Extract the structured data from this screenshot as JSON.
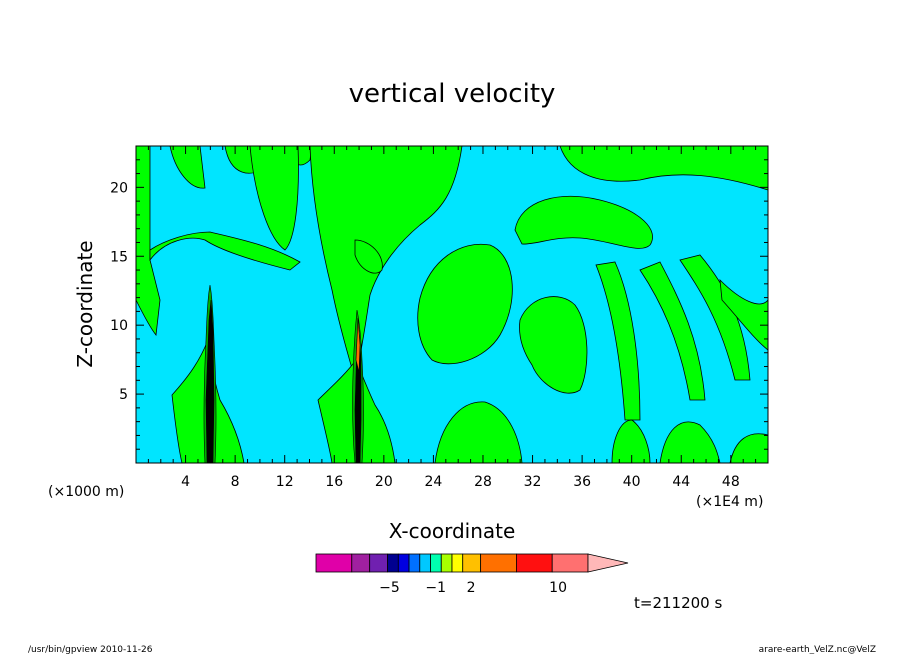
{
  "chart_data": {
    "type": "heatmap",
    "title": "vertical velocity",
    "xlabel": "X-coordinate",
    "ylabel": "Z-coordinate",
    "x_unit_label": "(×1E4 m)",
    "y_unit_label": "(×1000 m)",
    "xlim": [
      0,
      51
    ],
    "ylim": [
      0,
      23
    ],
    "x_ticks": [
      4,
      8,
      12,
      16,
      20,
      24,
      28,
      32,
      36,
      40,
      44,
      48
    ],
    "y_ticks": [
      5,
      10,
      15,
      20
    ],
    "time_label": "t=211200 s",
    "colorbar": {
      "colors": [
        "#e000a8",
        "#a020a0",
        "#7020b0",
        "#000090",
        "#0000e0",
        "#0070ff",
        "#00c8ff",
        "#00ffb0",
        "#a8ff00",
        "#ffff00",
        "#ffc000",
        "#ff7000",
        "#ff1010",
        "#ff7070",
        "#ffb8b8"
      ],
      "weights": [
        2,
        1,
        1,
        0.6,
        0.6,
        0.6,
        0.6,
        0.6,
        0.6,
        0.6,
        1,
        2,
        2,
        2,
        2
      ],
      "tick_labels": [
        {
          "label": "−5",
          "at": 0.27
        },
        {
          "label": "−1",
          "at": 0.44
        },
        {
          "label": "2",
          "at": 0.57
        },
        {
          "label": "10",
          "at": 0.89
        }
      ]
    },
    "background_color": "#00e5ff",
    "positive_color": "#00ff00",
    "updraft_color": "#000000"
  },
  "footer": {
    "left": "/usr/bin/gpview   2010-11-26",
    "right": "arare-earth_VelZ.nc@VelZ"
  }
}
